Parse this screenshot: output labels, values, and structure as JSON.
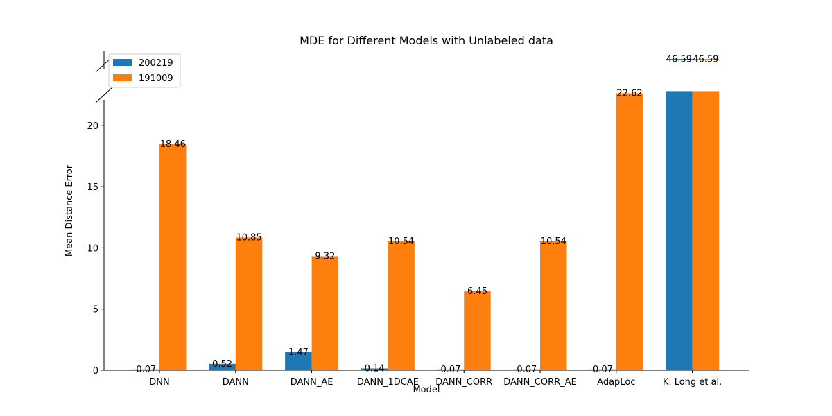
{
  "chart_data": {
    "type": "bar",
    "title": "MDE for Different Models with Unlabeled data",
    "xlabel": "Model",
    "ylabel": "Mean Distance Error",
    "categories": [
      "DNN",
      "DANN",
      "DANN_AE",
      "DANN_1DCAE",
      "DANN_CORR",
      "DANN_CORR_AE",
      "AdapLoc",
      "K. Long et al."
    ],
    "series": [
      {
        "name": "200219",
        "color": "#1f77b4",
        "values": [
          0.07,
          0.52,
          1.47,
          0.14,
          0.07,
          0.07,
          0.07,
          46.59
        ]
      },
      {
        "name": "191009",
        "color": "#ff7f0e",
        "values": [
          18.46,
          10.85,
          9.32,
          10.54,
          6.45,
          10.54,
          22.62,
          46.59
        ]
      }
    ],
    "data_labels": {
      "series_0": [
        "0.07",
        "0.52",
        "1.47",
        "0.14",
        "0.07",
        "0.07",
        "0.07",
        "46.59"
      ],
      "series_1": [
        "18.46",
        "10.85",
        "9.32",
        "10.54",
        "6.45",
        "10.54",
        "22.62",
        "46.59"
      ]
    },
    "yticks": [
      "0",
      "5",
      "10",
      "15",
      "20"
    ],
    "ylim_lower": [
      0,
      22.8
    ],
    "ylim_upper_break": [
      45,
      48
    ],
    "broken_axis": true,
    "grid": false,
    "legend": "top-left"
  }
}
